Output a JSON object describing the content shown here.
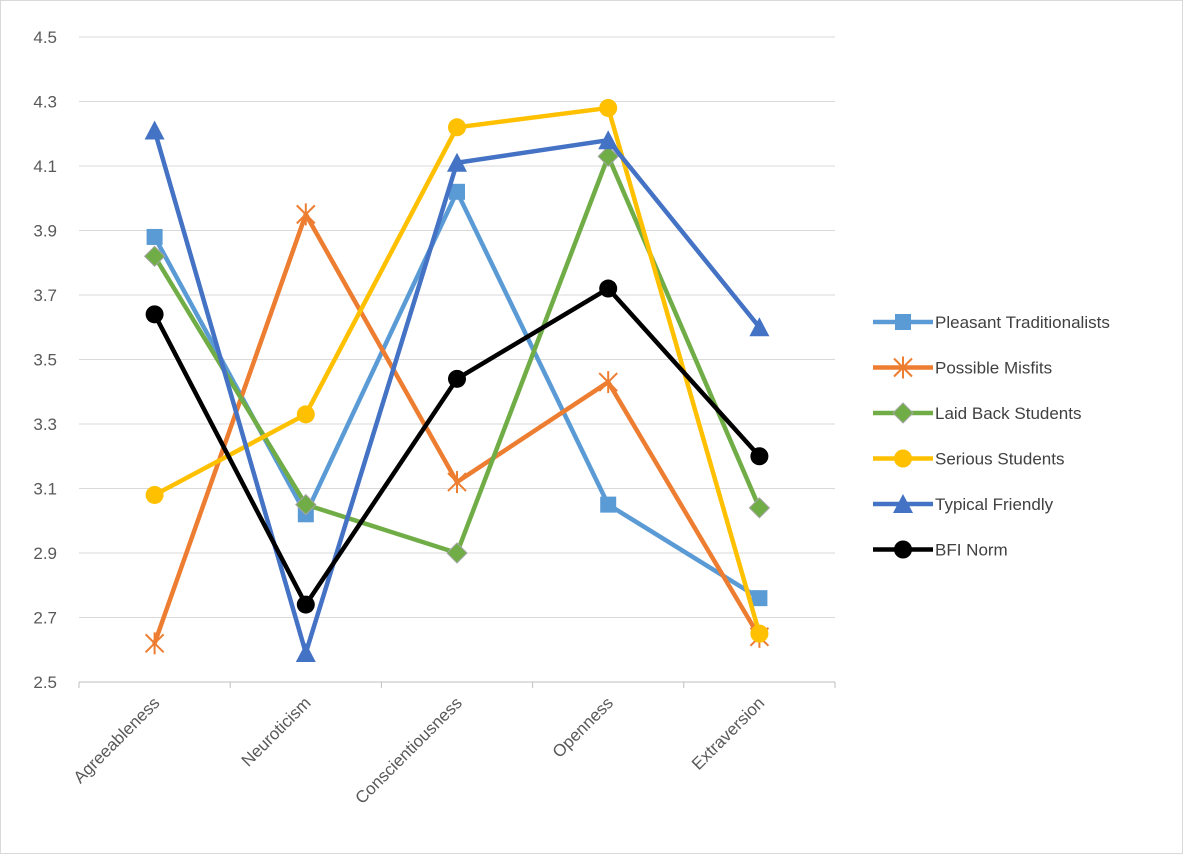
{
  "chart_data": {
    "type": "line",
    "title": "",
    "xlabel": "",
    "ylabel": "",
    "ylim": [
      2.5,
      4.5
    ],
    "yticks": [
      "2.5",
      "2.7",
      "2.9",
      "3.1",
      "3.3",
      "3.5",
      "3.7",
      "3.9",
      "4.1",
      "4.3",
      "4.5"
    ],
    "grid": true,
    "legend_position": "right",
    "categories": [
      "Agreeableness",
      "Neuroticism",
      "Conscientiousness",
      "Openness",
      "Extraversion"
    ],
    "series": [
      {
        "name": "Pleasant Traditionalists",
        "color": "#5b9bd5",
        "marker": "square",
        "values": [
          3.88,
          3.02,
          4.02,
          3.05,
          2.76
        ]
      },
      {
        "name": "Possible Misfits",
        "color": "#ed7d31",
        "marker": "star",
        "values": [
          2.62,
          3.95,
          3.12,
          3.43,
          2.64
        ]
      },
      {
        "name": "Laid Back Students",
        "color": "#70ad47",
        "marker": "diamond",
        "values": [
          3.82,
          3.05,
          2.9,
          4.13,
          3.04
        ]
      },
      {
        "name": "Serious Students",
        "color": "#ffc000",
        "marker": "circle",
        "values": [
          3.08,
          3.33,
          4.22,
          4.28,
          2.65
        ]
      },
      {
        "name": "Typical Friendly",
        "color": "#4472c4",
        "marker": "triangle",
        "values": [
          4.21,
          2.59,
          4.11,
          4.18,
          3.6
        ]
      },
      {
        "name": "BFI Norm",
        "color": "#000000",
        "marker": "circle",
        "values": [
          3.64,
          2.74,
          3.44,
          3.72,
          3.2
        ]
      }
    ]
  }
}
